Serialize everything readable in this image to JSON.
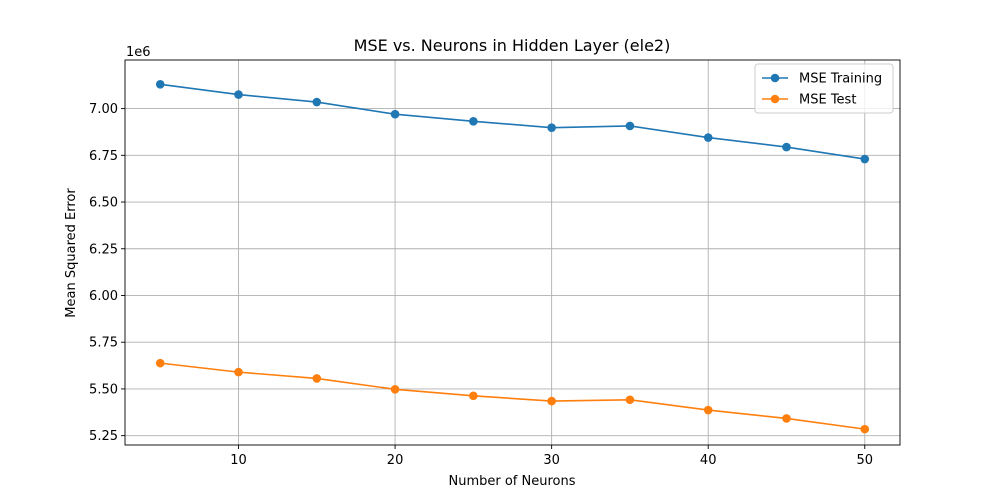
{
  "chart_data": {
    "type": "line",
    "title": "MSE vs. Neurons in Hidden Layer (ele2)",
    "xlabel": "Number of Neurons",
    "ylabel": "Mean Squared Error",
    "y_offset_label": "1e6",
    "y_scale": 1000000,
    "x": [
      5,
      10,
      15,
      20,
      25,
      30,
      35,
      40,
      45,
      50
    ],
    "xlim": [
      2.75,
      52.25
    ],
    "ylim": [
      5200000,
      7260000
    ],
    "xticks": [
      10,
      20,
      30,
      40,
      50
    ],
    "xtick_labels": [
      "10",
      "20",
      "30",
      "40",
      "50"
    ],
    "yticks": [
      5250000,
      5500000,
      5750000,
      6000000,
      6250000,
      6500000,
      6750000,
      7000000
    ],
    "ytick_labels": [
      "5.25",
      "5.50",
      "5.75",
      "6.00",
      "6.25",
      "6.50",
      "6.75",
      "7.00"
    ],
    "grid": true,
    "legend_position": "top-right",
    "series": [
      {
        "name": "MSE Training",
        "color": "#1f77b4",
        "marker": "circle",
        "values": [
          7130000,
          7075000,
          7035000,
          6970000,
          6932000,
          6898000,
          6907000,
          6845000,
          6794000,
          6730000
        ]
      },
      {
        "name": "MSE Test",
        "color": "#ff7f0e",
        "marker": "circle",
        "values": [
          5638000,
          5590000,
          5556000,
          5498000,
          5463000,
          5435000,
          5442000,
          5387000,
          5342000,
          5285000
        ]
      }
    ]
  }
}
